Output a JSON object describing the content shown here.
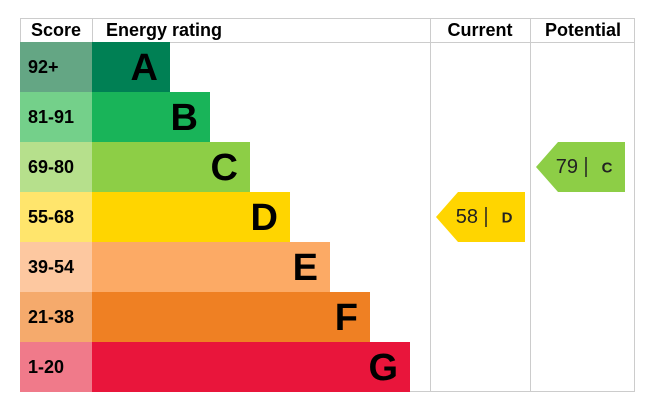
{
  "header": {
    "score": "Score",
    "rating": "Energy rating",
    "current": "Current",
    "potential": "Potential"
  },
  "bands": [
    {
      "score": "92+",
      "letter": "A",
      "color": "#008054",
      "light": "#64a684"
    },
    {
      "score": "81-91",
      "letter": "B",
      "color": "#19b459",
      "light": "#74d08a"
    },
    {
      "score": "69-80",
      "letter": "C",
      "color": "#8dce46",
      "light": "#b6e08c"
    },
    {
      "score": "55-68",
      "letter": "D",
      "color": "#ffd500",
      "light": "#ffe56c"
    },
    {
      "score": "39-54",
      "letter": "E",
      "color": "#fcaa65",
      "light": "#fdc8a0"
    },
    {
      "score": "21-38",
      "letter": "F",
      "color": "#ef8023",
      "light": "#f5aa6c"
    },
    {
      "score": "1-20",
      "letter": "G",
      "color": "#e9153b",
      "light": "#f07a8a"
    }
  ],
  "current": {
    "value": 58,
    "letter": "D"
  },
  "potential": {
    "value": 79,
    "letter": "C"
  }
}
